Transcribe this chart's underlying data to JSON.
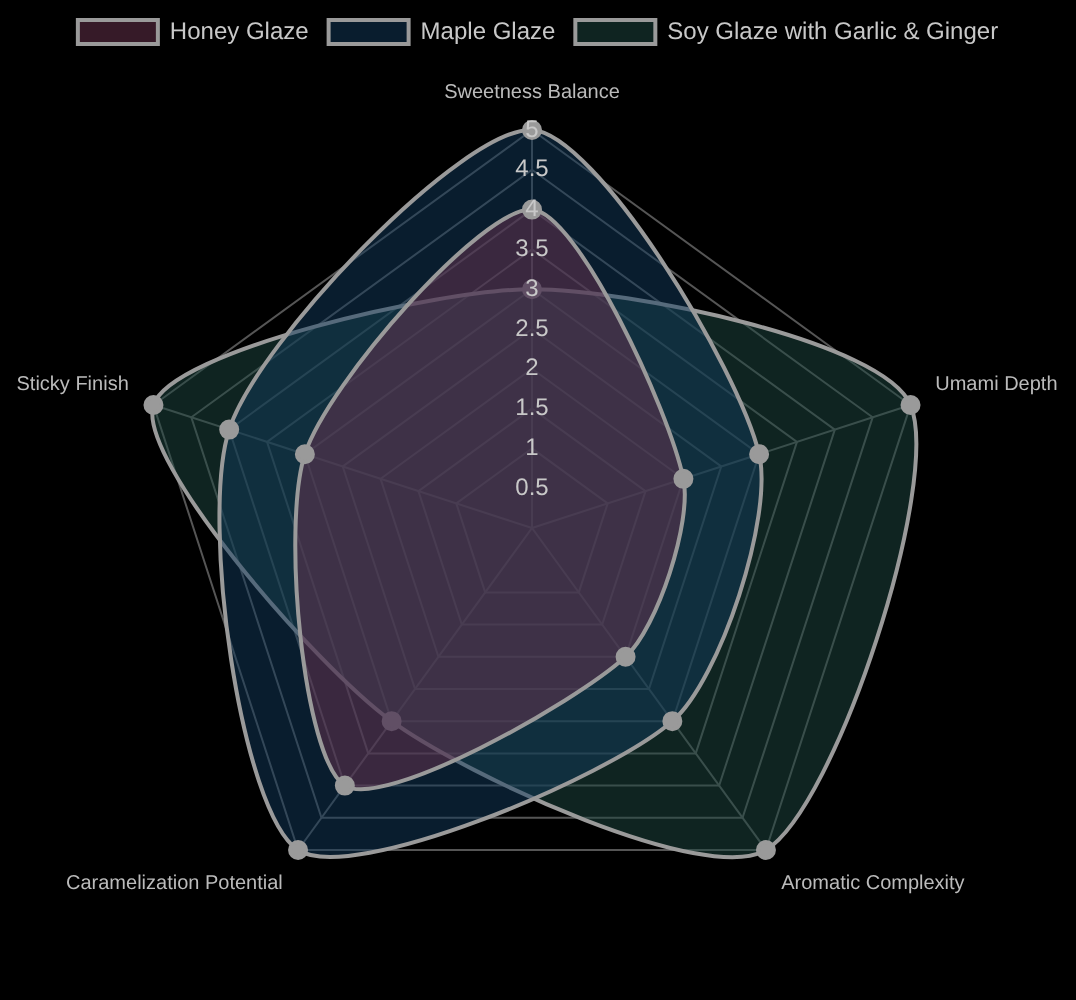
{
  "chart_data": {
    "type": "radar",
    "categories": [
      "Sweetness Balance",
      "Umami Depth",
      "Aromatic Complexity",
      "Caramelization Potential",
      "Sticky Finish"
    ],
    "series": [
      {
        "name": "Honey Glaze",
        "color": "#6b3350",
        "values": [
          4,
          2,
          2,
          4,
          3
        ]
      },
      {
        "name": "Maple Glaze",
        "color": "#12395c",
        "values": [
          5,
          3,
          3,
          5,
          4
        ]
      },
      {
        "name": "Soy Glaze with Garlic & Ginger",
        "color": "#1d4742",
        "values": [
          3,
          5,
          5,
          3,
          5
        ]
      }
    ],
    "ylim": [
      0,
      5
    ],
    "yticks": [
      0.5,
      1,
      1.5,
      2,
      2.5,
      3,
      3.5,
      4,
      4.5,
      5
    ],
    "grid": true,
    "legend": "top",
    "marker": "circle"
  }
}
